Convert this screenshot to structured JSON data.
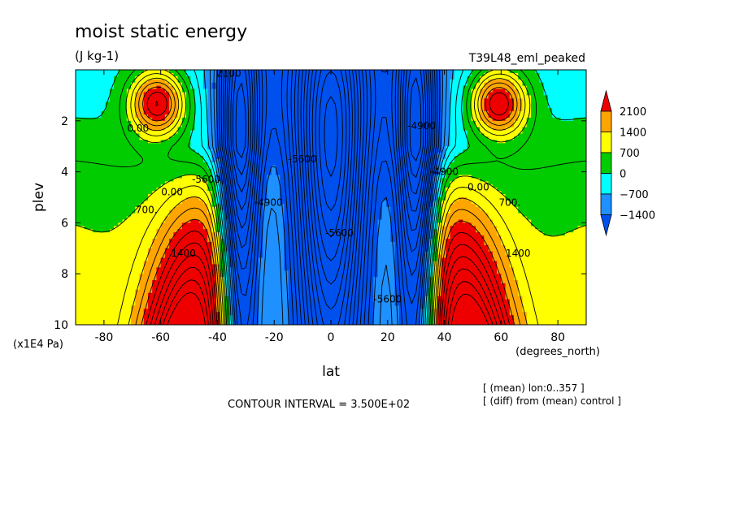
{
  "chart_data": {
    "type": "heatmap",
    "title": "moist static energy",
    "units": "(J kg-1)",
    "experiment": "T39L48_eml_peaked",
    "xlabel": "lat",
    "xunits": "(degrees_north)",
    "ylabel": "plev",
    "yunits": "(x1E4 Pa)",
    "xlim": [
      -90,
      90
    ],
    "ylim": [
      10,
      0
    ],
    "x_ticks": [
      -80,
      -60,
      -40,
      -20,
      0,
      20,
      40,
      60,
      80
    ],
    "y_ticks": [
      2,
      4,
      6,
      8,
      10
    ],
    "colorbar": {
      "labels": [
        "2100",
        "1400",
        "700",
        "0",
        "-700",
        "-1400"
      ],
      "bands": [
        {
          "from": 2100,
          "to": null,
          "color": "#ee0000"
        },
        {
          "from": 1400,
          "to": 2100,
          "color": "#ffa500"
        },
        {
          "from": 700,
          "to": 1400,
          "color": "#ffff00"
        },
        {
          "from": 0,
          "to": 700,
          "color": "#00cc00"
        },
        {
          "from": -700,
          "to": 0,
          "color": "#00ffff"
        },
        {
          "from": -1400,
          "to": -700,
          "color": "#1e90ff"
        },
        {
          "from": null,
          "to": -1400,
          "color": "#0050ee"
        }
      ]
    },
    "contour_labels": [
      {
        "text": "2100",
        "lat": -36,
        "p": 0.15
      },
      {
        "text": "0.00",
        "lat": -68,
        "p": 2.3
      },
      {
        "text": "0.00",
        "lat": -56,
        "p": 4.8
      },
      {
        "text": "700.",
        "lat": -65,
        "p": 5.5
      },
      {
        "text": "1400",
        "lat": -52,
        "p": 7.2
      },
      {
        "text": "-5600",
        "lat": -44,
        "p": 4.3
      },
      {
        "text": "-4900",
        "lat": -22,
        "p": 5.2
      },
      {
        "text": "-5600",
        "lat": -10,
        "p": 3.5
      },
      {
        "text": "-5600",
        "lat": 3,
        "p": 6.4
      },
      {
        "text": "-4900",
        "lat": 32,
        "p": 2.2
      },
      {
        "text": "-4900",
        "lat": 40,
        "p": 4.0
      },
      {
        "text": "-5600",
        "lat": 20,
        "p": 9.0
      },
      {
        "text": "0.00",
        "lat": 52,
        "p": 4.6
      },
      {
        "text": "700.",
        "lat": 63,
        "p": 5.2
      },
      {
        "text": "1400",
        "lat": 66,
        "p": 7.2
      }
    ],
    "annotations": [
      "CONTOUR INTERVAL = 3.500E+02",
      "[ (mean) lon:0..357 ]",
      "[ (diff) from (mean) control ]"
    ],
    "field_features": [
      {
        "kind": "surface-maximum",
        "lat": -50,
        "p_top": 5.6,
        "peak": 4200
      },
      {
        "kind": "surface-maximum",
        "lat": 48,
        "p_top": 5.6,
        "peak": 4200
      },
      {
        "kind": "upper-maximum",
        "lat": -61,
        "p": 1.3,
        "peak": 2300
      },
      {
        "kind": "upper-maximum",
        "lat": 59,
        "p": 1.3,
        "peak": 2300
      },
      {
        "kind": "minimum-column",
        "lat": 0,
        "p": 4.0,
        "peak": -5800
      },
      {
        "kind": "minimum-column",
        "lat": -32,
        "p": 4.0,
        "peak": -5000
      },
      {
        "kind": "minimum-column",
        "lat": 30,
        "p": 4.0,
        "peak": -5000
      }
    ]
  }
}
